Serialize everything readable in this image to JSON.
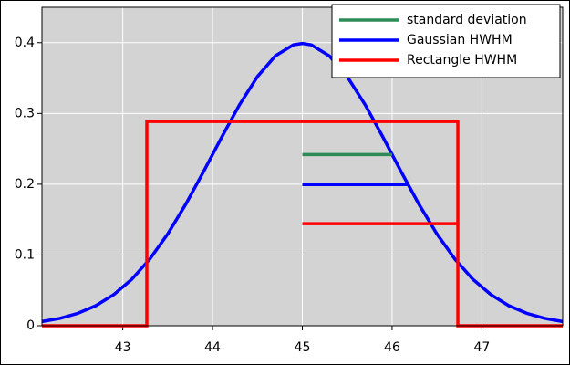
{
  "chart_data": {
    "type": "line",
    "xlim": [
      42.1,
      47.9
    ],
    "ylim": [
      0,
      0.45
    ],
    "xticks": [
      43,
      44,
      45,
      46,
      47
    ],
    "yticks": [
      0,
      0.1,
      0.2,
      0.3,
      0.4
    ],
    "grid": true,
    "legend": "upper right",
    "series": [
      {
        "color": "#0000ff",
        "x": [
          42.1,
          42.3,
          42.5,
          42.7,
          42.9,
          43.1,
          43.3,
          43.5,
          43.7,
          43.9,
          44.1,
          44.3,
          44.5,
          44.7,
          44.9,
          45.0,
          45.1,
          45.3,
          45.5,
          45.7,
          45.9,
          46.1,
          46.3,
          46.5,
          46.7,
          46.9,
          47.1,
          47.3,
          47.5,
          47.7,
          47.9
        ],
        "values": [
          0.00595,
          0.01042,
          0.01753,
          0.02833,
          0.04398,
          0.06562,
          0.09405,
          0.12952,
          0.17137,
          0.21785,
          0.26609,
          0.31225,
          0.35207,
          0.38139,
          0.39695,
          0.39894,
          0.39695,
          0.38139,
          0.35207,
          0.31225,
          0.26609,
          0.21785,
          0.17137,
          0.12952,
          0.09405,
          0.06562,
          0.04398,
          0.02833,
          0.01753,
          0.01042,
          0.00595
        ]
      },
      {
        "color": "#ff0000",
        "x": [
          42.1,
          43.268,
          43.268,
          46.732,
          46.732,
          47.9
        ],
        "values": [
          0,
          0,
          0.2887,
          0.2887,
          0,
          0
        ]
      },
      {
        "name": "standard deviation",
        "color": "#2e8b57",
        "x": [
          45,
          46
        ],
        "values": [
          0.242,
          0.242
        ]
      },
      {
        "name": "Gaussian HWHM",
        "color": "#0000ff",
        "x": [
          45,
          46.177
        ],
        "values": [
          0.1995,
          0.1995
        ]
      },
      {
        "name": "Rectangle HWHM",
        "color": "#ff0000",
        "x": [
          45,
          46.732
        ],
        "values": [
          0.1443,
          0.1443
        ]
      }
    ]
  }
}
